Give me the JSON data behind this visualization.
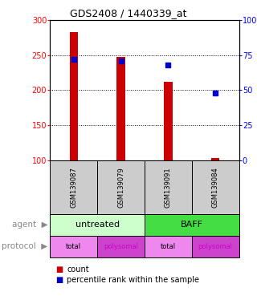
{
  "title": "GDS2408 / 1440339_at",
  "samples": [
    "GSM139087",
    "GSM139079",
    "GSM139091",
    "GSM139084"
  ],
  "bar_values": [
    283,
    247,
    212,
    103
  ],
  "percentile_values": [
    72,
    71,
    68,
    48
  ],
  "ylim_left": [
    100,
    300
  ],
  "ylim_right": [
    0,
    100
  ],
  "yticks_left": [
    100,
    150,
    200,
    250,
    300
  ],
  "yticks_right": [
    0,
    25,
    50,
    75,
    100
  ],
  "ytick_labels_right": [
    "0",
    "25",
    "50",
    "75",
    "100%"
  ],
  "bar_color": "#cc0000",
  "percentile_color": "#0000cc",
  "bar_width": 0.18,
  "agent_labels": [
    "untreated",
    "BAFF"
  ],
  "agent_colors": [
    "#ccffcc",
    "#44dd44"
  ],
  "protocol_labels": [
    "total",
    "polysomal",
    "total",
    "polysomal"
  ],
  "protocol_colors": [
    "#ee88ee",
    "#cc44cc",
    "#ee88ee",
    "#cc44cc"
  ],
  "protocol_text_colors": [
    "black",
    "#cc00cc",
    "black",
    "#cc00cc"
  ],
  "legend_count_color": "#cc0000",
  "legend_pct_color": "#0000cc",
  "bg_color": "#cccccc"
}
